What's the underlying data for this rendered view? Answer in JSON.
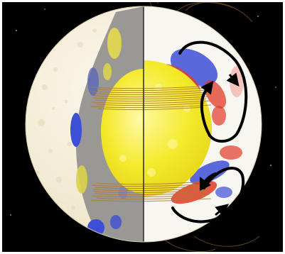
{
  "image": {
    "subject": "sun-interior-cutaway",
    "colors": {
      "background": "#000000",
      "surface": "#f4eedf",
      "core": "#f4ea2b",
      "core_highlight": "#fff9a8",
      "gray_zone": "#9a9895",
      "flux_positive": "#3d4fd6",
      "flux_negative": "#e23a28",
      "field_line": "#b07b2e",
      "flow_arrow": "#000000"
    },
    "icons": [
      "sun-cutaway",
      "meridional-flow-arrow"
    ]
  }
}
